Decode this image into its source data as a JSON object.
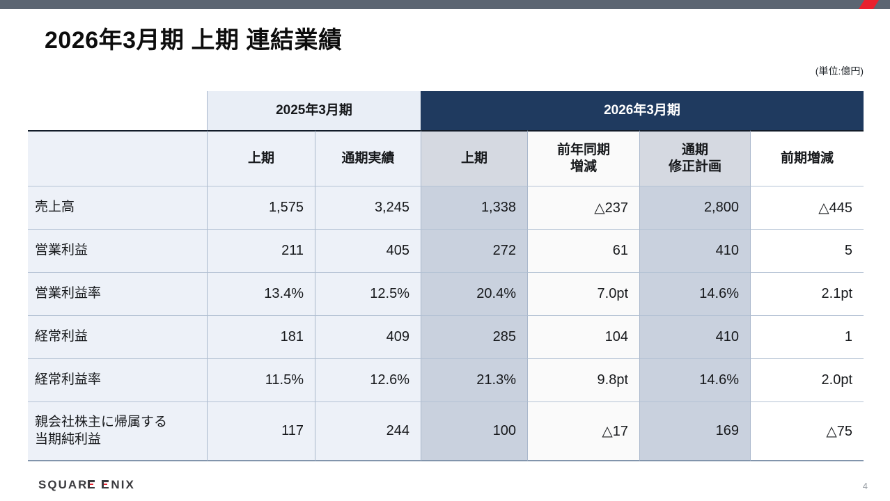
{
  "slide": {
    "title": "2026年3月期 上期 連結業績",
    "unit_note": "(単位:億円)",
    "page_number": "4",
    "logo_text": "SQUARE ENIX",
    "accent_color": "#e8202d",
    "topbar_color": "#5c6572",
    "header_navy_color": "#1f3a5f"
  },
  "table": {
    "group_2025": "2025年3月期",
    "group_2026": "2026年3月期",
    "col_headers": [
      "上期",
      "通期実績",
      "上期",
      "前年同期\n増減",
      "通期\n修正計画",
      "前期増減"
    ],
    "rows": [
      {
        "label": "売上高",
        "values": [
          "1,575",
          "3,245",
          "1,338",
          "△237",
          "2,800",
          "△445"
        ]
      },
      {
        "label": "営業利益",
        "values": [
          "211",
          "405",
          "272",
          "61",
          "410",
          "5"
        ]
      },
      {
        "label": "営業利益率",
        "values": [
          "13.4%",
          "12.5%",
          "20.4%",
          "7.0pt",
          "14.6%",
          "2.1pt"
        ]
      },
      {
        "label": "経常利益",
        "values": [
          "181",
          "409",
          "285",
          "104",
          "410",
          "1"
        ]
      },
      {
        "label": "経常利益率",
        "values": [
          "11.5%",
          "12.6%",
          "21.3%",
          "9.8pt",
          "14.6%",
          "2.0pt"
        ]
      },
      {
        "label": "親会社株主に帰属する\n当期純利益",
        "values": [
          "117",
          "244",
          "100",
          "△17",
          "169",
          "△75"
        ]
      }
    ]
  }
}
